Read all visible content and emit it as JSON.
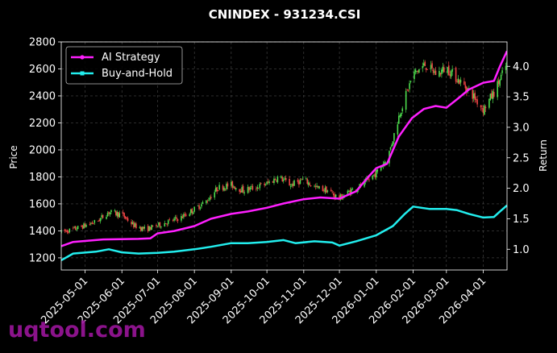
{
  "chart_data": {
    "type": "line",
    "title": "CNINDEX - 931234.CSI",
    "xlabel": "",
    "ylabel": "Price",
    "y2label": "Return",
    "x_ticks": [
      "2025-05-01",
      "2025-06-01",
      "2025-07-01",
      "2025-08-01",
      "2025-09-01",
      "2025-10-01",
      "2025-11-01",
      "2025-12-01",
      "2026-01-01",
      "2026-02-01",
      "2026-03-01",
      "2026-04-01"
    ],
    "x_range": [
      "2025-04-11",
      "2026-04-21"
    ],
    "ylim": [
      1110,
      2800
    ],
    "y_ticks": [
      1200,
      1400,
      1600,
      1800,
      2000,
      2200,
      2400,
      2600,
      2800
    ],
    "y2lim": [
      0.66,
      4.4
    ],
    "y2_ticks": [
      1.0,
      1.5,
      2.0,
      2.5,
      3.0,
      3.5,
      4.0
    ],
    "y2_tick_labels": [
      "1.0",
      "1.5",
      "2.0",
      "2.5",
      "3.0",
      "3.5",
      "4.0"
    ],
    "grid": true,
    "legend_position": "top-left",
    "colors": {
      "up": "#4cdb4c",
      "down": "#ee4444",
      "ai": "#ff1fff",
      "bh": "#22eeee"
    },
    "candlestick_price": [
      {
        "x": "2025-04-11",
        "y": 1390
      },
      {
        "x": "2025-04-21",
        "y": 1410
      },
      {
        "x": "2025-05-01",
        "y": 1440
      },
      {
        "x": "2025-05-11",
        "y": 1470
      },
      {
        "x": "2025-05-21",
        "y": 1540
      },
      {
        "x": "2025-06-01",
        "y": 1520
      },
      {
        "x": "2025-06-11",
        "y": 1440
      },
      {
        "x": "2025-06-21",
        "y": 1410
      },
      {
        "x": "2025-07-01",
        "y": 1440
      },
      {
        "x": "2025-07-11",
        "y": 1470
      },
      {
        "x": "2025-07-21",
        "y": 1500
      },
      {
        "x": "2025-08-01",
        "y": 1560
      },
      {
        "x": "2025-08-11",
        "y": 1620
      },
      {
        "x": "2025-08-21",
        "y": 1720
      },
      {
        "x": "2025-09-01",
        "y": 1740
      },
      {
        "x": "2025-09-11",
        "y": 1700
      },
      {
        "x": "2025-09-21",
        "y": 1720
      },
      {
        "x": "2025-10-01",
        "y": 1750
      },
      {
        "x": "2025-10-11",
        "y": 1800
      },
      {
        "x": "2025-10-21",
        "y": 1740
      },
      {
        "x": "2025-11-01",
        "y": 1780
      },
      {
        "x": "2025-11-11",
        "y": 1720
      },
      {
        "x": "2025-11-21",
        "y": 1700
      },
      {
        "x": "2025-12-01",
        "y": 1640
      },
      {
        "x": "2025-12-11",
        "y": 1700
      },
      {
        "x": "2025-12-21",
        "y": 1740
      },
      {
        "x": "2026-01-01",
        "y": 1830
      },
      {
        "x": "2026-01-11",
        "y": 1950
      },
      {
        "x": "2026-01-21",
        "y": 2280
      },
      {
        "x": "2026-02-01",
        "y": 2560
      },
      {
        "x": "2026-02-11",
        "y": 2630
      },
      {
        "x": "2026-02-21",
        "y": 2560
      },
      {
        "x": "2026-03-01",
        "y": 2610
      },
      {
        "x": "2026-03-11",
        "y": 2520
      },
      {
        "x": "2026-03-21",
        "y": 2430
      },
      {
        "x": "2026-04-01",
        "y": 2300
      },
      {
        "x": "2026-04-11",
        "y": 2440
      },
      {
        "x": "2026-04-21",
        "y": 2640
      }
    ],
    "series": [
      {
        "name": "AI Strategy",
        "axis": "right",
        "points": [
          {
            "x": "2025-04-11",
            "y": 1.05
          },
          {
            "x": "2025-04-21",
            "y": 1.12
          },
          {
            "x": "2025-05-15",
            "y": 1.16
          },
          {
            "x": "2025-06-15",
            "y": 1.17
          },
          {
            "x": "2025-06-25",
            "y": 1.18
          },
          {
            "x": "2025-07-01",
            "y": 1.26
          },
          {
            "x": "2025-07-15",
            "y": 1.3
          },
          {
            "x": "2025-08-01",
            "y": 1.38
          },
          {
            "x": "2025-08-15",
            "y": 1.5
          },
          {
            "x": "2025-09-01",
            "y": 1.58
          },
          {
            "x": "2025-09-15",
            "y": 1.62
          },
          {
            "x": "2025-10-01",
            "y": 1.68
          },
          {
            "x": "2025-10-15",
            "y": 1.75
          },
          {
            "x": "2025-11-01",
            "y": 1.82
          },
          {
            "x": "2025-11-15",
            "y": 1.85
          },
          {
            "x": "2025-12-01",
            "y": 1.83
          },
          {
            "x": "2025-12-15",
            "y": 1.95
          },
          {
            "x": "2025-12-25",
            "y": 2.18
          },
          {
            "x": "2026-01-01",
            "y": 2.33
          },
          {
            "x": "2026-01-10",
            "y": 2.4
          },
          {
            "x": "2026-01-20",
            "y": 2.85
          },
          {
            "x": "2026-01-31",
            "y": 3.15
          },
          {
            "x": "2026-02-10",
            "y": 3.3
          },
          {
            "x": "2026-02-20",
            "y": 3.35
          },
          {
            "x": "2026-03-01",
            "y": 3.32
          },
          {
            "x": "2026-03-10",
            "y": 3.46
          },
          {
            "x": "2026-03-20",
            "y": 3.62
          },
          {
            "x": "2026-04-01",
            "y": 3.73
          },
          {
            "x": "2026-04-10",
            "y": 3.76
          },
          {
            "x": "2026-04-15",
            "y": 4.0
          },
          {
            "x": "2026-04-21",
            "y": 4.25
          }
        ]
      },
      {
        "name": "Buy-and-Hold",
        "axis": "right",
        "points": [
          {
            "x": "2025-04-11",
            "y": 0.82
          },
          {
            "x": "2025-04-21",
            "y": 0.93
          },
          {
            "x": "2025-05-10",
            "y": 0.96
          },
          {
            "x": "2025-05-21",
            "y": 1.0
          },
          {
            "x": "2025-06-01",
            "y": 0.95
          },
          {
            "x": "2025-06-15",
            "y": 0.93
          },
          {
            "x": "2025-07-01",
            "y": 0.94
          },
          {
            "x": "2025-07-15",
            "y": 0.96
          },
          {
            "x": "2025-08-01",
            "y": 1.0
          },
          {
            "x": "2025-08-15",
            "y": 1.04
          },
          {
            "x": "2025-09-01",
            "y": 1.1
          },
          {
            "x": "2025-09-15",
            "y": 1.1
          },
          {
            "x": "2025-10-01",
            "y": 1.12
          },
          {
            "x": "2025-10-15",
            "y": 1.15
          },
          {
            "x": "2025-10-25",
            "y": 1.1
          },
          {
            "x": "2025-11-10",
            "y": 1.13
          },
          {
            "x": "2025-11-25",
            "y": 1.11
          },
          {
            "x": "2025-12-01",
            "y": 1.06
          },
          {
            "x": "2025-12-15",
            "y": 1.13
          },
          {
            "x": "2026-01-01",
            "y": 1.23
          },
          {
            "x": "2026-01-15",
            "y": 1.38
          },
          {
            "x": "2026-01-25",
            "y": 1.58
          },
          {
            "x": "2026-02-01",
            "y": 1.7
          },
          {
            "x": "2026-02-15",
            "y": 1.66
          },
          {
            "x": "2026-03-01",
            "y": 1.66
          },
          {
            "x": "2026-03-10",
            "y": 1.64
          },
          {
            "x": "2026-03-20",
            "y": 1.58
          },
          {
            "x": "2026-04-01",
            "y": 1.52
          },
          {
            "x": "2026-04-10",
            "y": 1.53
          },
          {
            "x": "2026-04-15",
            "y": 1.62
          },
          {
            "x": "2026-04-21",
            "y": 1.72
          }
        ]
      }
    ]
  },
  "watermark": "uqtool.com"
}
